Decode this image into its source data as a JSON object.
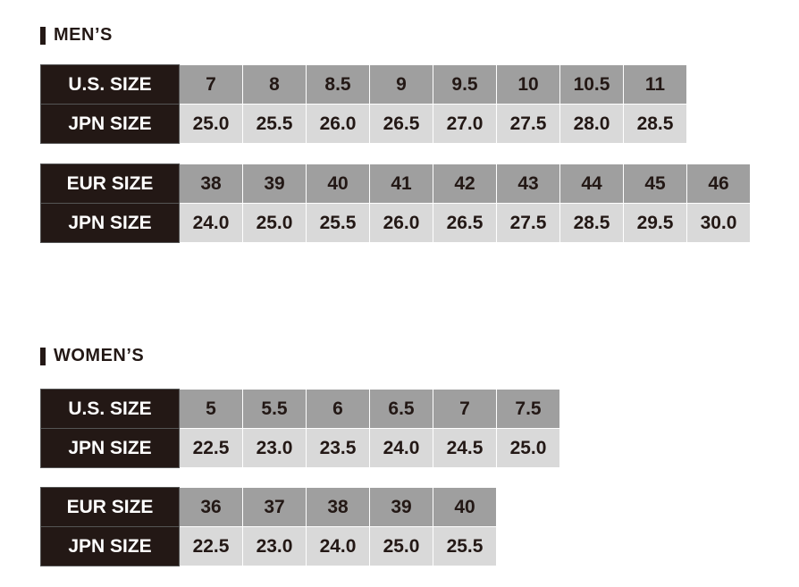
{
  "mens": {
    "title": "MEN’S",
    "us": {
      "label": "U.S. SIZE",
      "jpn_label": "JPN SIZE",
      "sizes": [
        "7",
        "8",
        "8.5",
        "9",
        "9.5",
        "10",
        "10.5",
        "11"
      ],
      "jpn": [
        "25.0",
        "25.5",
        "26.0",
        "26.5",
        "27.0",
        "27.5",
        "28.0",
        "28.5"
      ]
    },
    "eur": {
      "label": "EUR SIZE",
      "jpn_label": "JPN SIZE",
      "sizes": [
        "38",
        "39",
        "40",
        "41",
        "42",
        "43",
        "44",
        "45",
        "46"
      ],
      "jpn": [
        "24.0",
        "25.0",
        "25.5",
        "26.0",
        "26.5",
        "27.5",
        "28.5",
        "29.5",
        "30.0"
      ]
    }
  },
  "womens": {
    "title": "WOMEN’S",
    "us": {
      "label": "U.S. SIZE",
      "jpn_label": "JPN SIZE",
      "sizes": [
        "5",
        "5.5",
        "6",
        "6.5",
        "7",
        "7.5"
      ],
      "jpn": [
        "22.5",
        "23.0",
        "23.5",
        "24.0",
        "24.5",
        "25.0"
      ]
    },
    "eur": {
      "label": "EUR SIZE",
      "jpn_label": "JPN SIZE",
      "sizes": [
        "36",
        "37",
        "38",
        "39",
        "40"
      ],
      "jpn": [
        "22.5",
        "23.0",
        "24.0",
        "25.0",
        "25.5"
      ]
    }
  }
}
